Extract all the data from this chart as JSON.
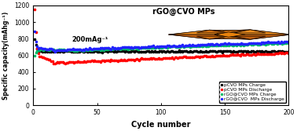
{
  "title": "",
  "xlabel": "Cycle number",
  "ylabel": "Specific capacity(mAhg⁻¹)",
  "xlim": [
    0,
    200
  ],
  "ylim": [
    0,
    1200
  ],
  "yticks": [
    0,
    200,
    400,
    600,
    800,
    1000,
    1200
  ],
  "xticks": [
    0,
    50,
    100,
    150,
    200
  ],
  "annotation_text": "200mAg⁻¹",
  "label_text": "rGO@CVO MPs",
  "legend_entries": [
    {
      "label": "pCVO MPs Charge",
      "color": "#000000"
    },
    {
      "label": "pCVO MPs Discharge",
      "color": "#ff0000"
    },
    {
      "label": "rGO@CVO MPs Charge",
      "color": "#00bb66"
    },
    {
      "label": "rGO@CVO  MPs Discharge",
      "color": "#2222ff"
    }
  ],
  "background_color": "#ffffff",
  "orange": "#E8820C",
  "dark_line": "#1a0a00"
}
